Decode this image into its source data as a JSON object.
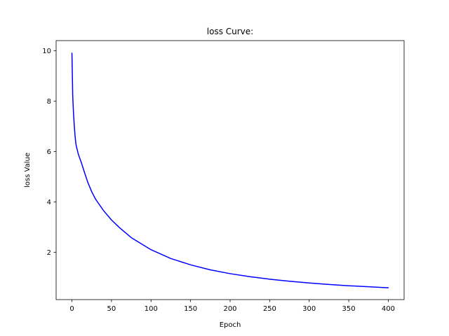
{
  "chart_data": {
    "type": "line",
    "title": "loss Curve:",
    "xlabel": "Epoch",
    "ylabel": "loss Value",
    "xlim": [
      -20,
      420
    ],
    "ylim": [
      0.12,
      10.4
    ],
    "xticks": [
      0,
      50,
      100,
      150,
      200,
      250,
      300,
      350,
      400
    ],
    "yticks": [
      2,
      4,
      6,
      8,
      10
    ],
    "grid": false,
    "legend": false,
    "series": [
      {
        "color": "#0000ff",
        "x": [
          0,
          1,
          2,
          3,
          4,
          5,
          6,
          8,
          10,
          12,
          15,
          20,
          25,
          30,
          40,
          50,
          60,
          75,
          100,
          125,
          150,
          175,
          200,
          225,
          250,
          275,
          300,
          325,
          350,
          375,
          400
        ],
        "y": [
          9.9,
          8.2,
          7.5,
          7.0,
          6.6,
          6.3,
          6.15,
          5.9,
          5.72,
          5.55,
          5.25,
          4.78,
          4.4,
          4.1,
          3.65,
          3.28,
          2.98,
          2.58,
          2.1,
          1.75,
          1.5,
          1.3,
          1.15,
          1.03,
          0.93,
          0.85,
          0.78,
          0.72,
          0.67,
          0.63,
          0.59
        ]
      }
    ]
  }
}
